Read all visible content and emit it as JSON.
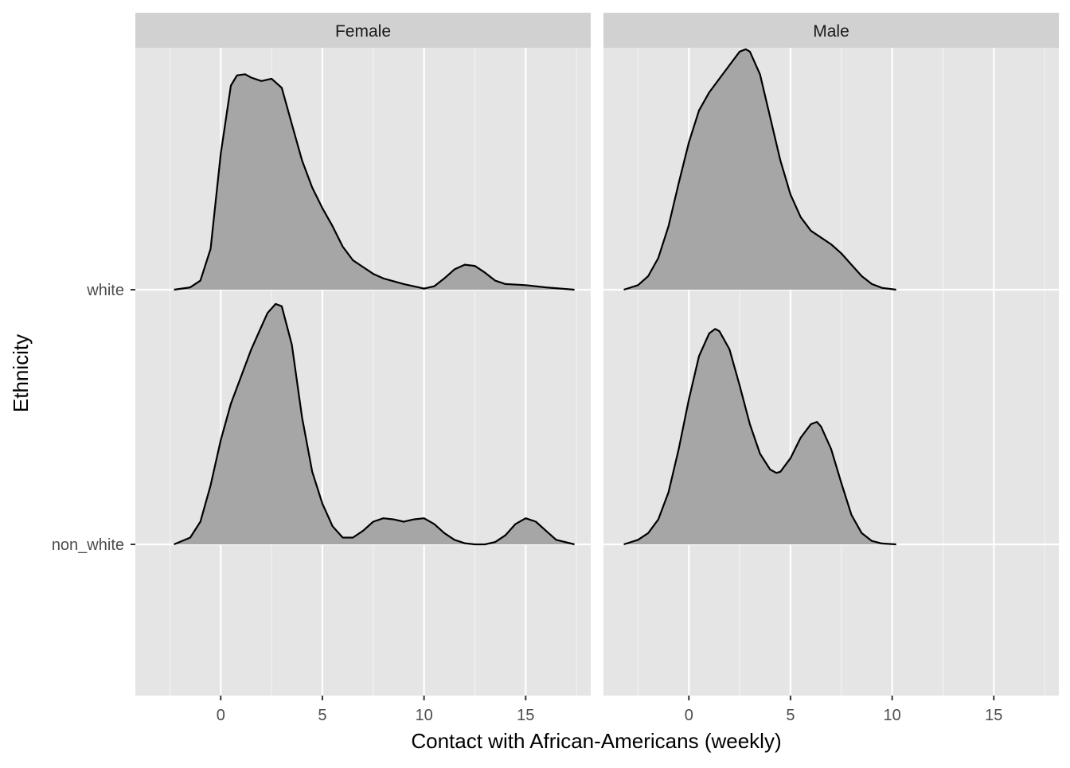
{
  "chart_data": {
    "type": "area",
    "subtype": "ridgeline density, faceted by gender",
    "xlabel": "Contact with African-Americans (weekly)",
    "ylabel": "Ethnicity",
    "x_ticks": [
      0,
      5,
      10,
      15
    ],
    "x_range": [
      -4.2,
      18.2
    ],
    "y_categories": [
      "white",
      "non_white"
    ],
    "grid": true,
    "fill_color": "#a6a6a6",
    "panel_color": "#e5e5e5",
    "strip_color": "#d1d1d1",
    "facets": [
      {
        "label": "Female",
        "series": [
          {
            "category": "white",
            "x": [
              -2.3,
              -1.5,
              -1,
              -0.5,
              0,
              0.5,
              0.8,
              1.2,
              1.5,
              2,
              2.5,
              3,
              3.5,
              4,
              4.5,
              5,
              5.5,
              6,
              6.5,
              7,
              7.5,
              8,
              9,
              10,
              10.5,
              11,
              11.5,
              12,
              12.5,
              13,
              13.5,
              14,
              15,
              16,
              17.4
            ],
            "y": [
              0.0,
              0.01,
              0.04,
              0.18,
              0.6,
              0.9,
              0.945,
              0.95,
              0.935,
              0.92,
              0.93,
              0.89,
              0.73,
              0.57,
              0.45,
              0.36,
              0.28,
              0.19,
              0.13,
              0.1,
              0.07,
              0.05,
              0.025,
              0.005,
              0.015,
              0.05,
              0.09,
              0.11,
              0.105,
              0.075,
              0.04,
              0.025,
              0.02,
              0.01,
              0.0
            ]
          },
          {
            "category": "non_white",
            "x": [
              -2.3,
              -1.5,
              -1,
              -0.5,
              0,
              0.5,
              1,
              1.5,
              2,
              2.3,
              2.7,
              3,
              3.5,
              4,
              4.5,
              5,
              5.5,
              6,
              6.5,
              7,
              7.5,
              8,
              8.5,
              9,
              9.5,
              10,
              10.5,
              11,
              11.5,
              12,
              12.5,
              13,
              13.5,
              14,
              14.5,
              15,
              15.5,
              16,
              16.5,
              17.4
            ],
            "y": [
              0.0,
              0.03,
              0.1,
              0.26,
              0.46,
              0.62,
              0.74,
              0.86,
              0.96,
              1.02,
              1.06,
              1.05,
              0.88,
              0.56,
              0.32,
              0.18,
              0.08,
              0.03,
              0.03,
              0.06,
              0.1,
              0.115,
              0.11,
              0.1,
              0.11,
              0.115,
              0.09,
              0.05,
              0.02,
              0.005,
              0.0,
              0.0,
              0.01,
              0.04,
              0.09,
              0.115,
              0.1,
              0.06,
              0.02,
              0.0
            ]
          }
        ]
      },
      {
        "label": "Male",
        "series": [
          {
            "category": "white",
            "x": [
              -3.2,
              -2.5,
              -2,
              -1.5,
              -1,
              -0.5,
              0,
              0.5,
              1,
              1.5,
              2,
              2.5,
              2.8,
              3,
              3.5,
              4,
              4.5,
              5,
              5.5,
              6,
              6.5,
              7,
              7.5,
              8,
              8.5,
              9,
              9.5,
              10.2
            ],
            "y": [
              0.0,
              0.02,
              0.06,
              0.14,
              0.28,
              0.47,
              0.65,
              0.79,
              0.87,
              0.93,
              0.99,
              1.05,
              1.06,
              1.05,
              0.95,
              0.76,
              0.57,
              0.42,
              0.32,
              0.26,
              0.23,
              0.2,
              0.16,
              0.11,
              0.06,
              0.025,
              0.008,
              0.0
            ]
          },
          {
            "category": "non_white",
            "x": [
              -3.2,
              -2.5,
              -2,
              -1.5,
              -1,
              -0.5,
              0,
              0.5,
              1,
              1.3,
              1.5,
              2,
              2.5,
              3,
              3.5,
              4,
              4.3,
              4.5,
              5,
              5.5,
              6,
              6.3,
              6.5,
              7,
              7.5,
              8,
              8.5,
              9,
              9.5,
              10.2
            ],
            "y": [
              0.0,
              0.02,
              0.05,
              0.11,
              0.23,
              0.42,
              0.64,
              0.83,
              0.93,
              0.95,
              0.94,
              0.86,
              0.7,
              0.53,
              0.4,
              0.33,
              0.315,
              0.32,
              0.38,
              0.47,
              0.53,
              0.54,
              0.52,
              0.42,
              0.27,
              0.13,
              0.05,
              0.015,
              0.004,
              0.0
            ]
          }
        ]
      }
    ]
  }
}
